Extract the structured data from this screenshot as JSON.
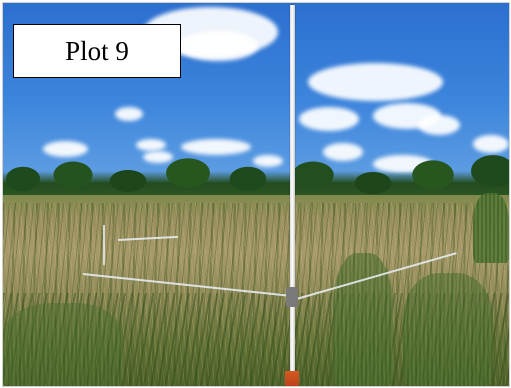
{
  "label": {
    "text": "Plot 9"
  },
  "colors": {
    "sky": "#3c84dc",
    "treeline": "#244c1f",
    "field": "#9a8f5e",
    "pole": "#ffffff",
    "pole_base": "#d85a1f"
  }
}
